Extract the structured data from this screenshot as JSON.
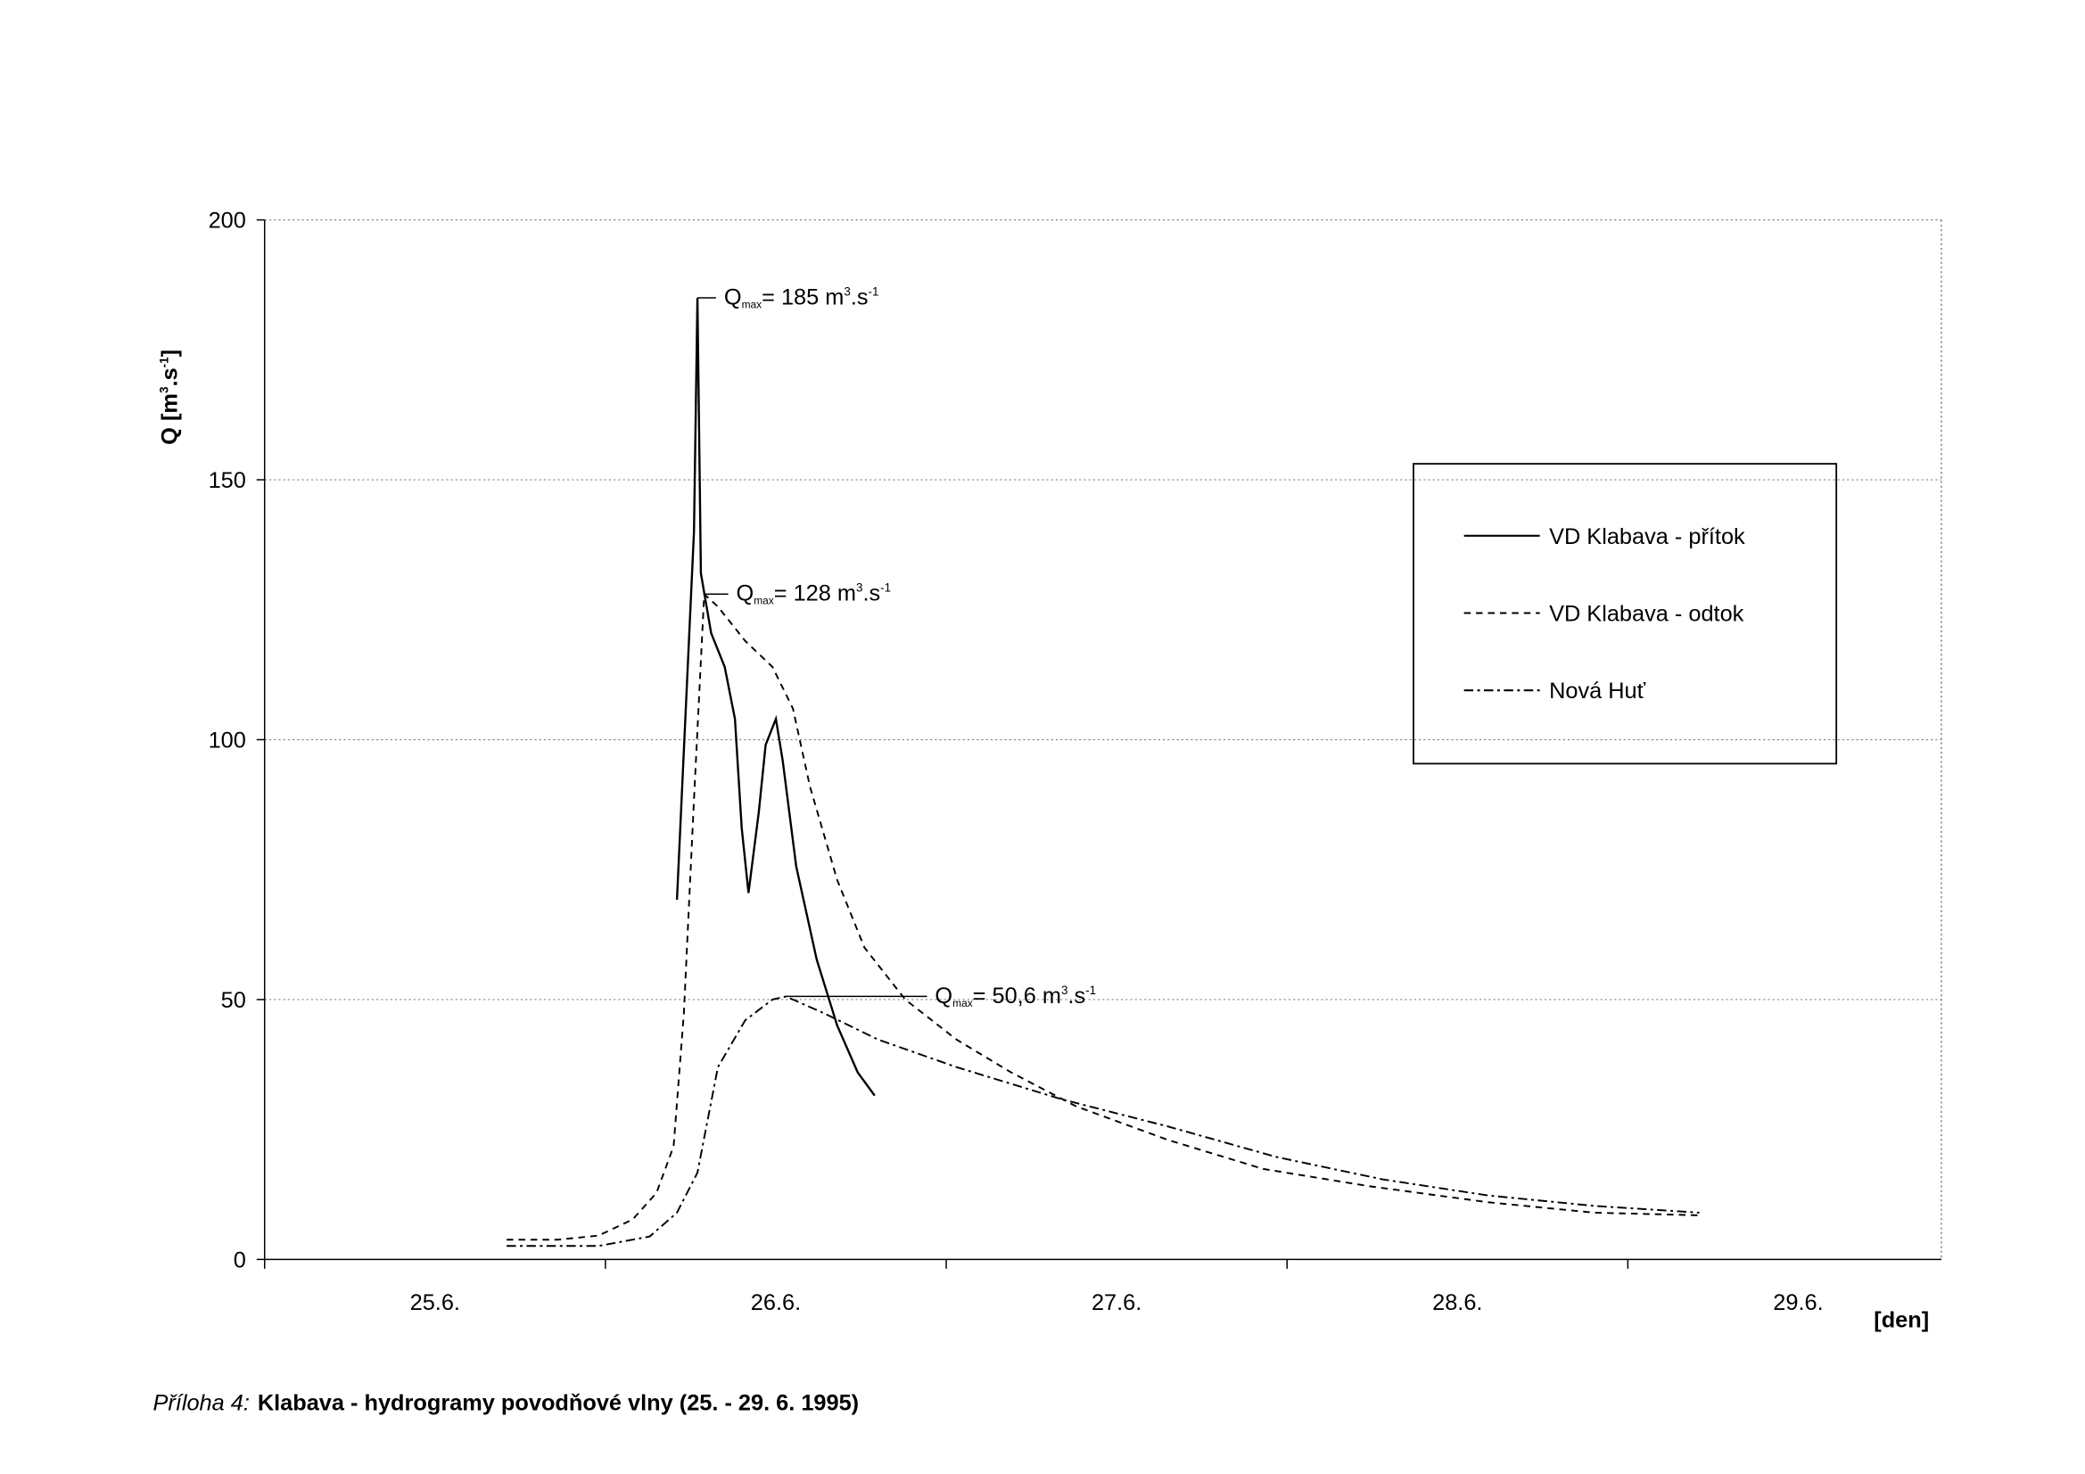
{
  "chart_data": {
    "type": "line",
    "y_label": [
      "Q [m",
      "3",
      ".s",
      "-1",
      "]"
    ],
    "x_unit": "[den]",
    "caption": {
      "prefix": "Příloha 4:",
      "title": "Klabava - hydrogramy povodňové vlny (25. - 29. 6. 1995)"
    },
    "xlim": [
      25,
      29.92
    ],
    "xticks": [
      {
        "value": 25,
        "label": "25.6."
      },
      {
        "value": 26,
        "label": "26.6."
      },
      {
        "value": 27,
        "label": "27.6."
      },
      {
        "value": 28,
        "label": "28.6."
      },
      {
        "value": 29,
        "label": "29.6."
      }
    ],
    "ylim": [
      0,
      200
    ],
    "yticks": [
      0,
      50,
      100,
      150,
      200
    ],
    "grid": true,
    "series": [
      {
        "name": "VD Klabava - přítok",
        "color": "#000000",
        "dash": "solid",
        "x": [
          26.21,
          26.26,
          26.27,
          26.28,
          26.31,
          26.35,
          26.38,
          26.4,
          26.42,
          26.45,
          26.47,
          26.5,
          26.52,
          26.56,
          26.62,
          26.68,
          26.74,
          26.79
        ],
        "values": [
          69.2,
          140,
          185,
          132,
          120.5,
          114,
          104,
          83,
          70.5,
          86,
          99,
          104,
          96,
          75.6,
          57.7,
          45,
          36,
          31.5
        ]
      },
      {
        "name": "VD Klabava - odtok",
        "color": "#000000",
        "dash": "dashed",
        "x": [
          25.71,
          25.86,
          25.98,
          26.08,
          26.15,
          26.2,
          26.23,
          26.26,
          26.29,
          26.33,
          26.41,
          26.49,
          26.55,
          26.6,
          26.68,
          26.76,
          26.88,
          27.03,
          27.19,
          27.38,
          27.65,
          27.93,
          28.24,
          28.59,
          28.9,
          29.21
        ],
        "values": [
          3.8,
          3.8,
          4.6,
          7.7,
          12.8,
          21.8,
          47.4,
          88.5,
          128,
          125.6,
          119,
          114,
          106,
          91,
          73,
          60,
          50,
          42.3,
          36,
          29.5,
          23,
          17.4,
          14.1,
          11,
          9,
          8.5
        ]
      },
      {
        "name": "Nová Huť",
        "color": "#000000",
        "dash": "dashdot",
        "x": [
          25.71,
          25.98,
          26.13,
          26.21,
          26.27,
          26.33,
          26.41,
          26.49,
          26.53,
          26.64,
          26.8,
          27.03,
          27.34,
          27.65,
          27.97,
          28.28,
          28.59,
          28.9,
          29.21
        ],
        "values": [
          2.6,
          2.6,
          4.4,
          9,
          16.7,
          37,
          46,
          50,
          50.6,
          47.4,
          42.3,
          37,
          30.8,
          25.6,
          19.7,
          15.4,
          12.3,
          10.3,
          9
        ]
      }
    ],
    "annotations": [
      [
        "Q",
        "max",
        "= 185 m",
        "3",
        ".s",
        "-1"
      ],
      [
        "Q",
        "max",
        "= 128 m",
        "3",
        ".s",
        "-1"
      ],
      [
        "Q",
        "max",
        "= 50,6 m",
        "3",
        ".s",
        "-1"
      ]
    ]
  }
}
